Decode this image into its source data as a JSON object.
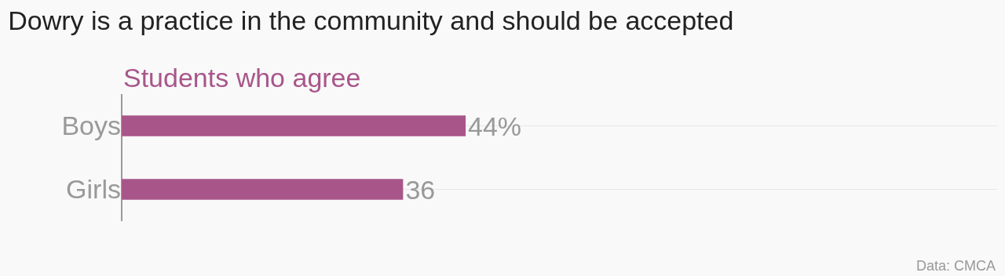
{
  "chart_data": {
    "type": "bar",
    "orientation": "horizontal",
    "title": "Dowry is a practice in the community and should be accepted",
    "categories": [
      "Boys",
      "Girls"
    ],
    "series": [
      {
        "name": "Students who agree",
        "color": "#a8568a",
        "values": [
          44,
          36
        ],
        "value_labels": [
          "44%",
          "36"
        ]
      }
    ],
    "xlim": [
      0,
      112
    ],
    "grid": "y",
    "legend": "top left",
    "annotations": [
      "Data: CMCA"
    ]
  }
}
